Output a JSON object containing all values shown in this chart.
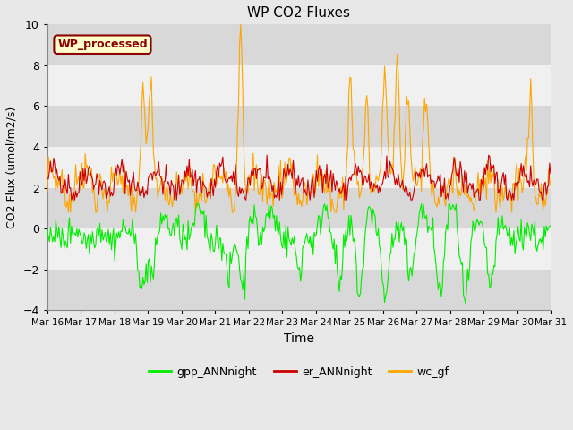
{
  "title": "WP CO2 Fluxes",
  "xlabel": "Time",
  "ylabel": "CO2 Flux (umol/m2/s)",
  "ylim": [
    -4,
    10
  ],
  "yticks": [
    -4,
    -2,
    0,
    2,
    4,
    6,
    8,
    10
  ],
  "x_start_day": 16,
  "x_end_day": 31,
  "xtick_days": [
    16,
    17,
    18,
    19,
    20,
    21,
    22,
    23,
    24,
    25,
    26,
    27,
    28,
    29,
    30,
    31
  ],
  "gpp_color": "#00ee00",
  "er_color": "#cc0000",
  "wc_color": "#ffa500",
  "legend_label_gpp": "gpp_ANNnight",
  "legend_label_er": "er_ANNnight",
  "legend_label_wc": "wc_gf",
  "annotation_text": "WP_processed",
  "annotation_bg": "#ffffcc",
  "annotation_edge": "#8b0000",
  "annotation_text_color": "#8b0000",
  "bg_color": "#e8e8e8",
  "plot_bg": "#ffffff",
  "band_color_light": "#f0f0f0",
  "band_color_dark": "#d8d8d8",
  "n_points": 480,
  "seed": 42
}
